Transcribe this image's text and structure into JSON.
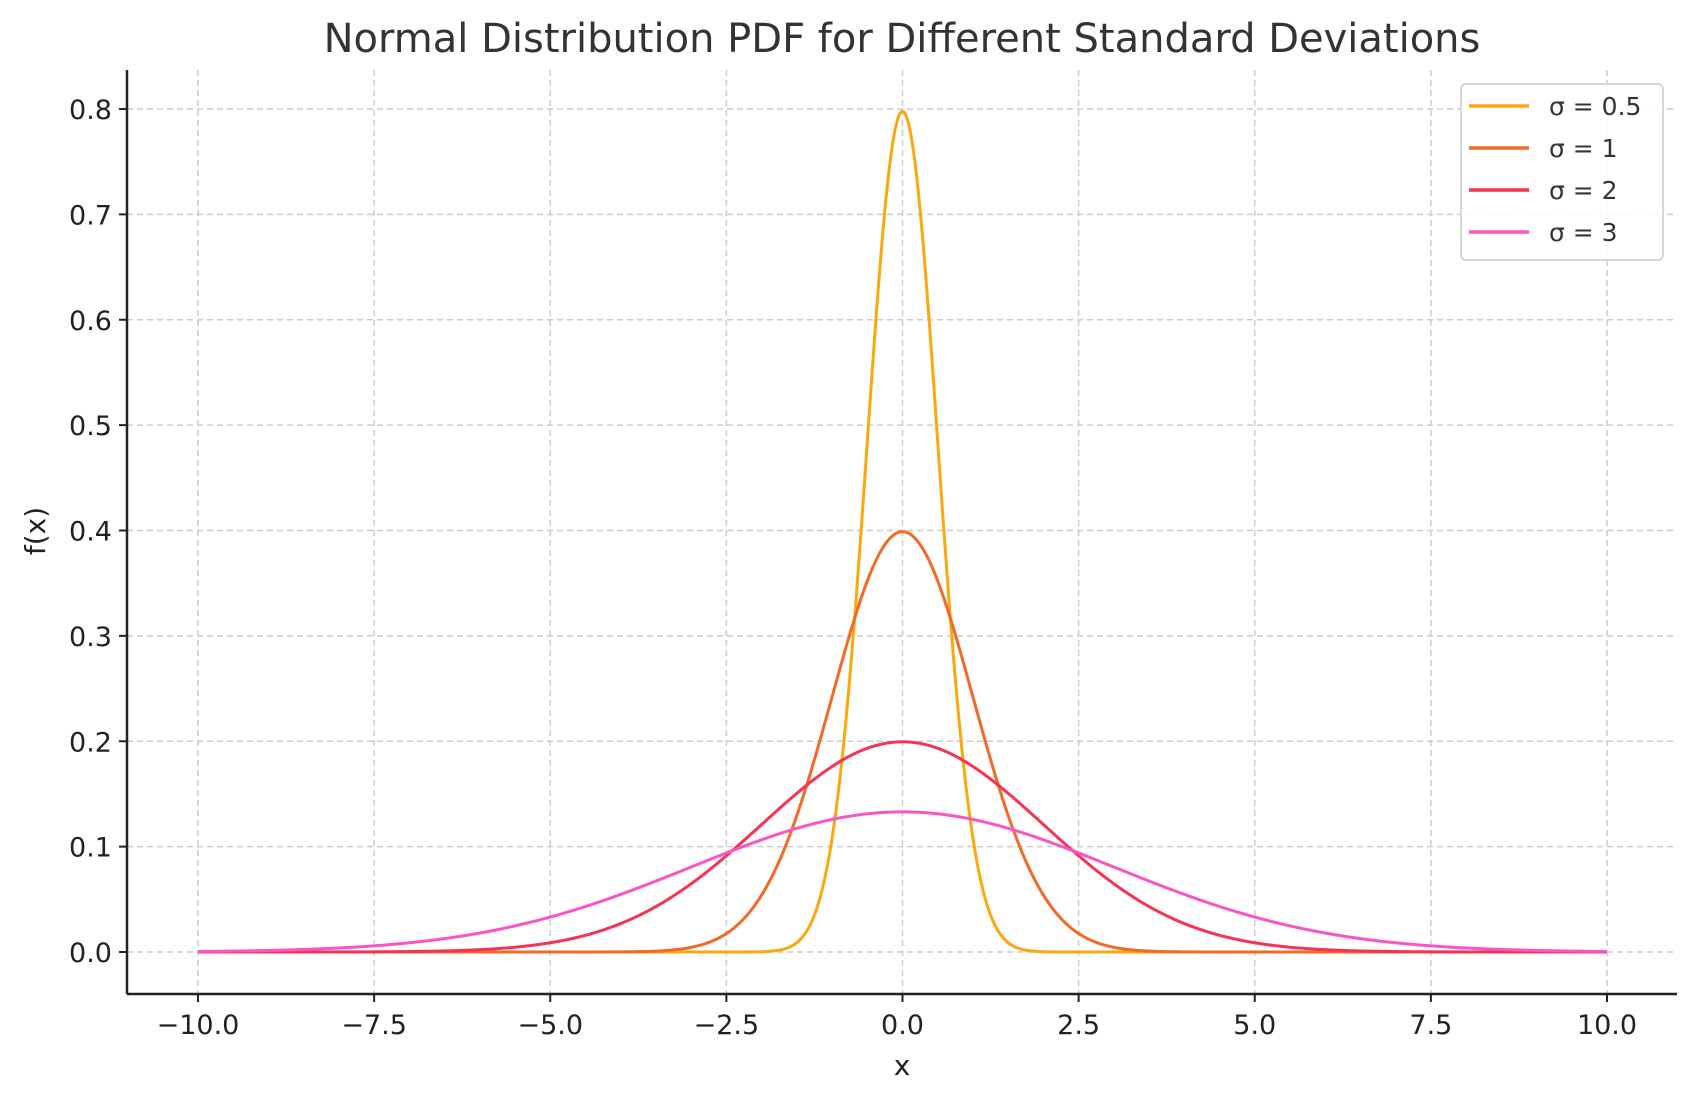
{
  "chart_data": {
    "type": "line",
    "title": "Normal Distribution PDF for Different Standard Deviations",
    "xlabel": "x",
    "ylabel": "f(x)",
    "xlim": [
      -11,
      11
    ],
    "ylim": [
      -0.04,
      0.84
    ],
    "x_range": [
      -10,
      10
    ],
    "mean": 0,
    "xticks": [
      -10.0,
      -7.5,
      -5.0,
      -2.5,
      0.0,
      2.5,
      5.0,
      7.5,
      10.0
    ],
    "xtick_labels": [
      "−10.0",
      "−7.5",
      "−5.0",
      "−2.5",
      "0.0",
      "2.5",
      "5.0",
      "7.5",
      "10.0"
    ],
    "yticks": [
      0.0,
      0.1,
      0.2,
      0.3,
      0.4,
      0.5,
      0.6,
      0.7,
      0.8
    ],
    "ytick_labels": [
      "0.0",
      "0.1",
      "0.2",
      "0.3",
      "0.4",
      "0.5",
      "0.6",
      "0.7",
      "0.8"
    ],
    "grid": true,
    "legend_position": "top-right",
    "series": [
      {
        "name": "σ = 0.5",
        "sigma": 0.5,
        "peak": 0.798,
        "color": "#FBA80F"
      },
      {
        "name": "σ = 1",
        "sigma": 1,
        "peak": 0.399,
        "color": "#F26A26"
      },
      {
        "name": "σ = 2",
        "sigma": 2,
        "peak": 0.199,
        "color": "#F53454"
      },
      {
        "name": "σ = 3",
        "sigma": 3,
        "peak": 0.133,
        "color": "#F955C4"
      }
    ]
  }
}
